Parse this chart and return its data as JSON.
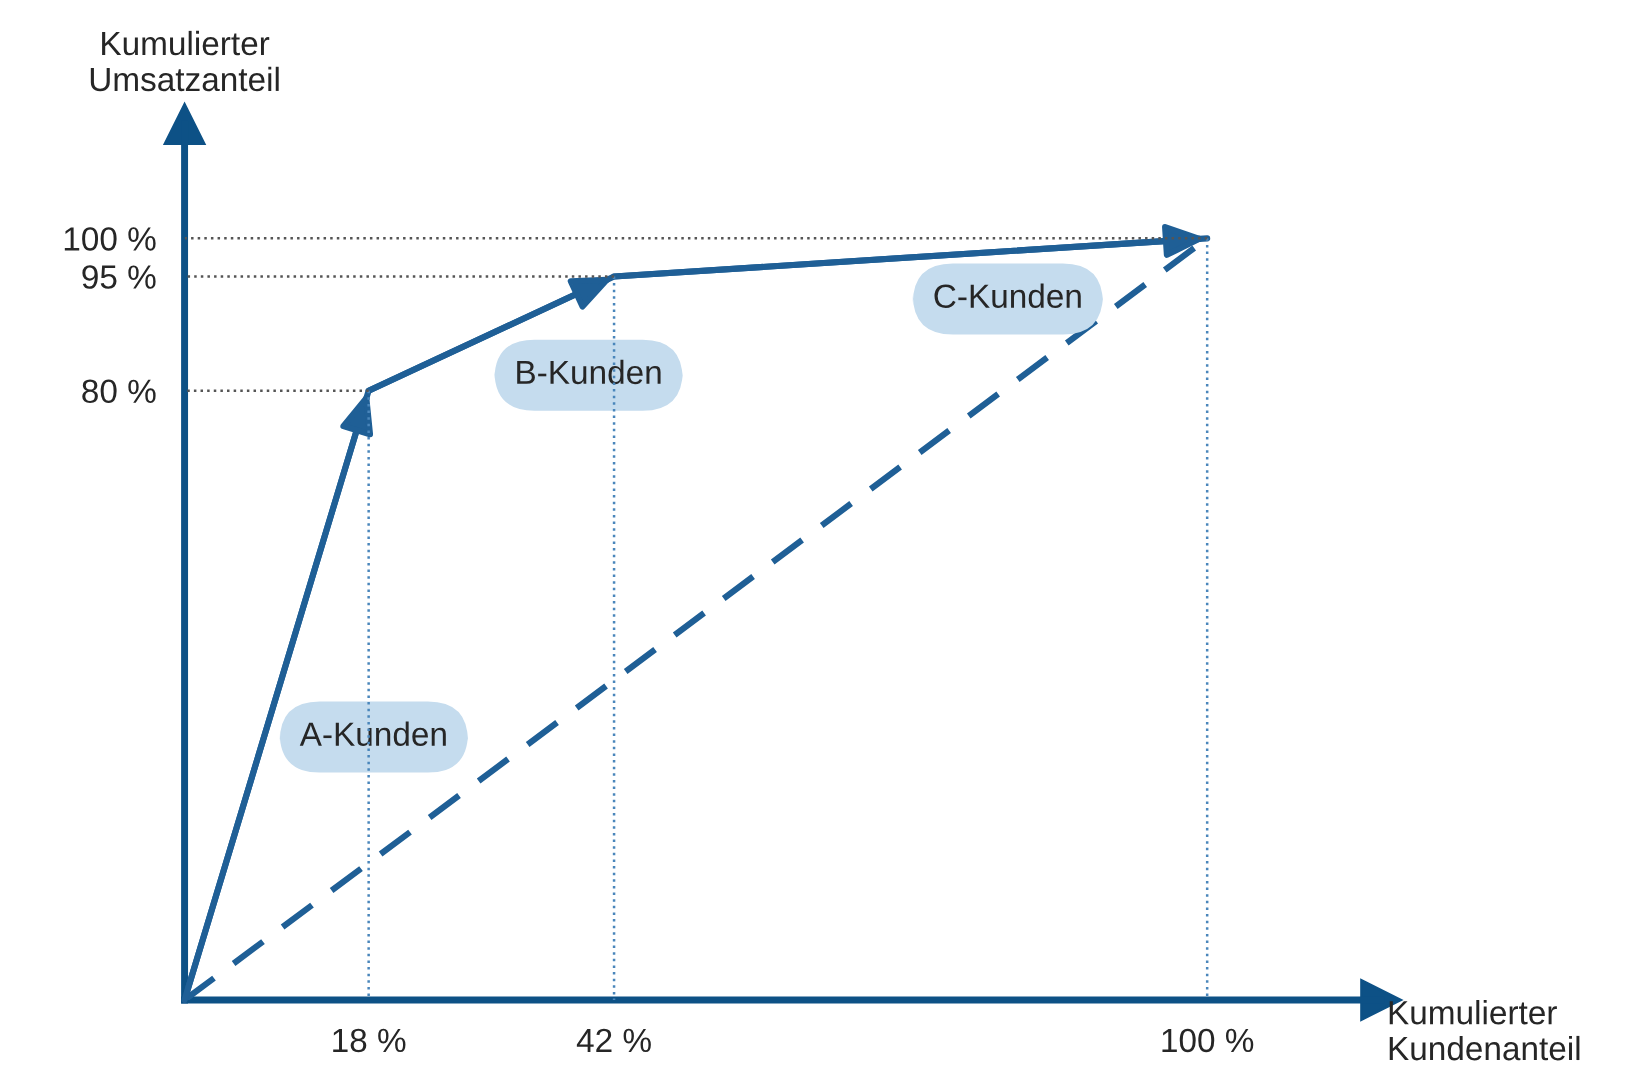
{
  "chart_data": {
    "type": "line",
    "xlabel": "Kumulierter\nKundenanteil",
    "ylabel": "Kumulierter\nUmsatzanteil",
    "series": [
      {
        "x": [
          0,
          18,
          42,
          100
        ],
        "values": [
          0,
          80,
          95,
          100
        ],
        "color": "#1f5f96",
        "line_style": "solid"
      },
      {
        "x": [
          0,
          100
        ],
        "values": [
          0,
          100
        ],
        "color": "#1f5f96",
        "line_style": "dashed"
      },
      {
        "x": [
          18,
          18
        ],
        "values": [
          0,
          80
        ],
        "color": "#4a86bb",
        "line_style": "dotted"
      },
      {
        "x": [
          42,
          42
        ],
        "values": [
          0,
          95
        ],
        "color": "#4a86bb",
        "line_style": "dotted"
      },
      {
        "x": [
          100,
          100
        ],
        "values": [
          0,
          100
        ],
        "color": "#4a86bb",
        "line_style": "dotted"
      },
      {
        "x": [
          0,
          18
        ],
        "values": [
          80,
          80
        ],
        "color": "#555555",
        "line_style": "dotted"
      },
      {
        "x": [
          0,
          42
        ],
        "values": [
          95,
          95
        ],
        "color": "#555555",
        "line_style": "dotted"
      },
      {
        "x": [
          0,
          100
        ],
        "values": [
          100,
          100
        ],
        "color": "#555555",
        "line_style": "dotted"
      }
    ],
    "xlim": [
      0,
      117
    ],
    "ylim": [
      0,
      115
    ],
    "xticks": [
      {
        "value": 18,
        "label": "18 %"
      },
      {
        "value": 42,
        "label": "42 %"
      },
      {
        "value": 100,
        "label": "100 %"
      }
    ],
    "yticks": [
      {
        "value": 80,
        "label": "80 %"
      },
      {
        "value": 95,
        "label": "95 %"
      },
      {
        "value": 100,
        "label": "100 %"
      }
    ],
    "annotations": [
      "A-Kunden",
      "B-Kunden",
      "C-Kunden"
    ],
    "grid": false,
    "legend": false,
    "marker": "none"
  }
}
